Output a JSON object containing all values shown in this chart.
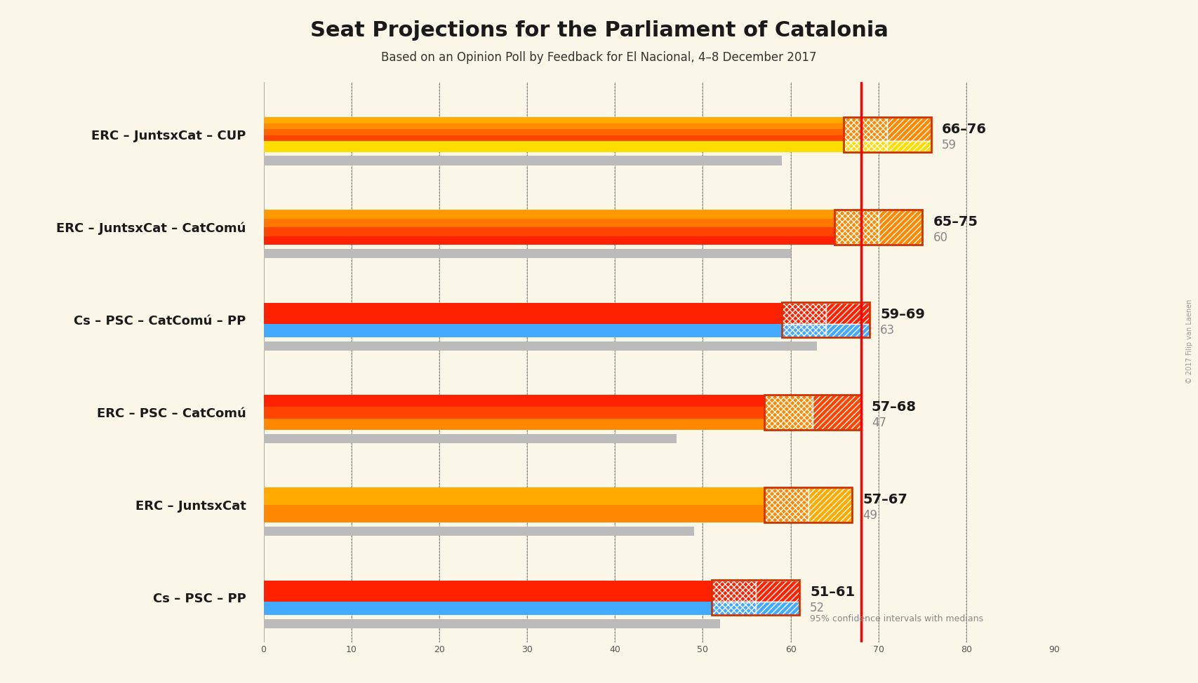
{
  "title": "Seat Projections for the Parliament of Catalonia",
  "subtitle": "Based on an Opinion Poll by Feedback for El Nacional, 4–8 December 2017",
  "copyright": "© 2017 Filip van Laenen",
  "background_color": "#FAF6E8",
  "coalitions": [
    "ERC – JuntsxCat – CUP",
    "ERC – JuntsxCat – CatComú",
    "Cs – PSC – CatComú – PP",
    "ERC – PSC – CatComú",
    "ERC – JuntsxCat",
    "Cs – PSC – PP"
  ],
  "ci_low": [
    66,
    65,
    59,
    57,
    57,
    51
  ],
  "ci_high": [
    76,
    75,
    69,
    68,
    67,
    61
  ],
  "medians": [
    59,
    60,
    63,
    47,
    49,
    52
  ],
  "xmax": 90,
  "red_line": 68,
  "dotted_lines": [
    10,
    20,
    30,
    40,
    50,
    60,
    70,
    80
  ],
  "bar_configs": [
    {
      "name": "ERC – JuntsxCat – CUP",
      "stripes": [
        "#FF4400",
        "#FF6600",
        "#FF8C00",
        "#FFAA00"
      ],
      "bottom_color": "#FFDD00",
      "has_yellow": true,
      "has_blue": false,
      "ci_top_color": "#FF8800",
      "ci_bot_color": "#FFDD00"
    },
    {
      "name": "ERC – JuntsxCat – CatComú",
      "stripes": [
        "#FF2200",
        "#FF4400",
        "#FF7700",
        "#FF9900"
      ],
      "bottom_color": null,
      "has_yellow": false,
      "has_blue": false,
      "ci_top_color": "#FF8800",
      "ci_bot_color": "#FF8800"
    },
    {
      "name": "Cs – PSC – CatComú – PP",
      "stripes": [
        "#FF2200"
      ],
      "bottom_color": "#44AAFF",
      "has_yellow": false,
      "has_blue": true,
      "ci_top_color": "#FF2200",
      "ci_bot_color": "#44AAFF"
    },
    {
      "name": "ERC – PSC – CatComú",
      "stripes": [
        "#FF8800",
        "#FF4400",
        "#FF2200"
      ],
      "bottom_color": null,
      "has_yellow": false,
      "has_blue": false,
      "ci_top_color": "#FF8800",
      "ci_bot_color": "#FF4400"
    },
    {
      "name": "ERC – JuntsxCat",
      "stripes": [
        "#FF8800",
        "#FFAA00"
      ],
      "bottom_color": null,
      "has_yellow": false,
      "has_blue": false,
      "ci_top_color": "#FF8800",
      "ci_bot_color": "#FFAA00"
    },
    {
      "name": "Cs – PSC – PP",
      "stripes": [
        "#FF2200"
      ],
      "bottom_color": "#44AAFF",
      "has_yellow": false,
      "has_blue": true,
      "ci_top_color": "#FF2200",
      "ci_bot_color": "#44AAFF"
    }
  ],
  "dotted_color": "#888888",
  "solid_line_color": "#333333",
  "gray_color": "#BBBBBB"
}
